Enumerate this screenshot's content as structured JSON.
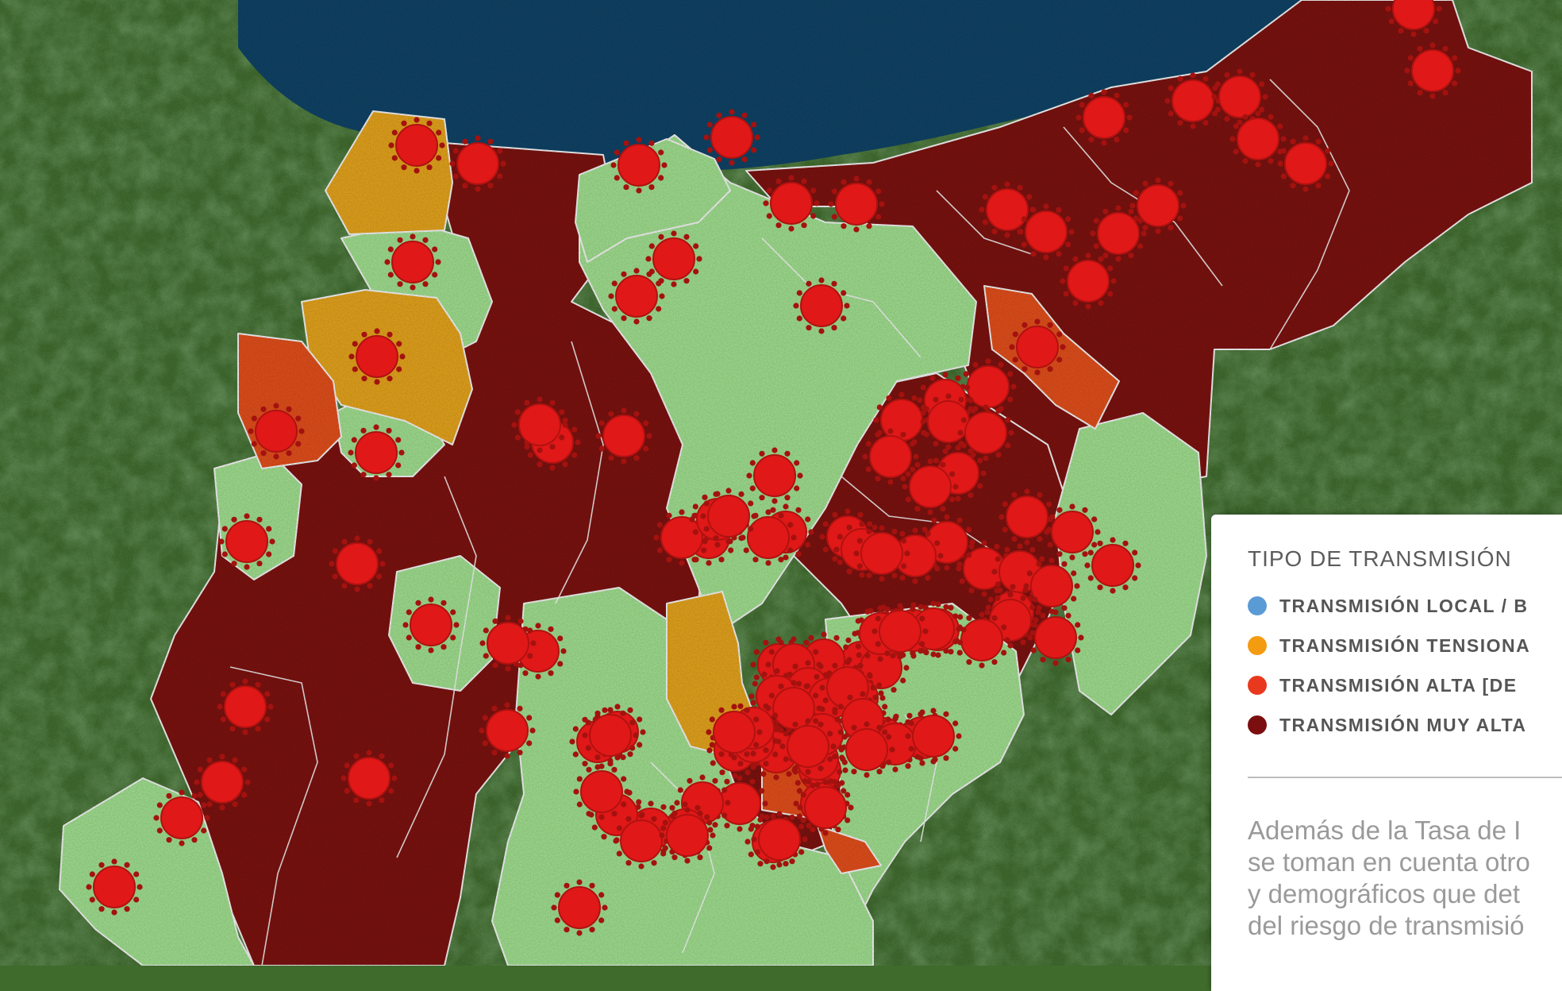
{
  "map": {
    "colors": {
      "sea": "#0f4265",
      "land": "#416c2f",
      "very_high": "#7a120f",
      "high": "#e04e1b",
      "tension": "#e2a21c",
      "low": "#9fdd8e",
      "virus": "#e01818",
      "border": "#f2f2f2"
    },
    "zones": [
      {
        "level": "very_high",
        "icon": "virus-icon"
      },
      {
        "level": "high",
        "icon": "virus-icon"
      },
      {
        "level": "tension",
        "icon": "virus-icon"
      },
      {
        "level": "low",
        "icon": "virus-icon"
      }
    ]
  },
  "legend": {
    "title": "TIPO DE TRANSMISIÓN",
    "items": [
      {
        "label": "TRANSMISIÓN LOCAL / B",
        "color": "#5b9bd5"
      },
      {
        "label": "TRANSMISIÓN TENSIONA",
        "color": "#f39c12"
      },
      {
        "label": "TRANSMISIÓN ALTA [DE",
        "color": "#e8391e"
      },
      {
        "label": "TRANSMISIÓN MUY ALTA",
        "color": "#7b0e0e"
      }
    ],
    "description_lines": [
      "Además de la Tasa de I",
      "se toman en cuenta otro",
      "y demográficos que det",
      "del riesgo de transmisió"
    ]
  }
}
